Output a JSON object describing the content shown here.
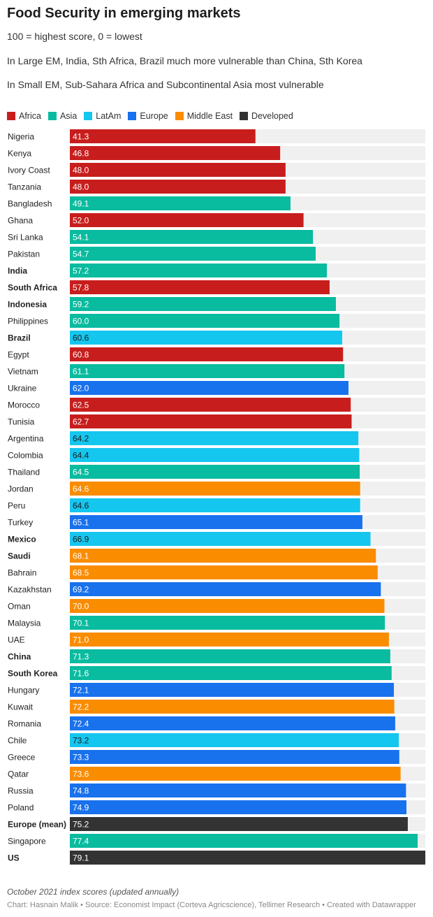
{
  "title": "Food Security in emerging markets",
  "subtitles": [
    "100 = highest score, 0 = lowest",
    "In Large EM, India, Sth Africa, Brazil much more vulnerable than China, Sth Korea",
    "In Small EM, Sub-Sahara Africa and Subcontinental Asia most vulnerable"
  ],
  "legend": [
    {
      "name": "Africa",
      "color": "#c71e1d"
    },
    {
      "name": "Asia",
      "color": "#09bb9f"
    },
    {
      "name": "LatAm",
      "color": "#15c6ef"
    },
    {
      "name": "Europe",
      "color": "#1871ed"
    },
    {
      "name": "Middle East",
      "color": "#fa8c00"
    },
    {
      "name": "Developed",
      "color": "#333333"
    }
  ],
  "footer": {
    "note": "October 2021 index scores (updated annually)",
    "credit": "Chart: Hasnain Malik • Source: Economist Impact (Corteva Agricscience), Tellimer Research • Created with Datawrapper"
  },
  "chart_data": {
    "type": "bar",
    "orientation": "horizontal",
    "xlim": [
      0,
      79.1
    ],
    "background_track": true,
    "rows": [
      {
        "label": "Nigeria",
        "value": 41.3,
        "region": "Africa",
        "bold": false
      },
      {
        "label": "Kenya",
        "value": 46.8,
        "region": "Africa",
        "bold": false
      },
      {
        "label": "Ivory Coast",
        "value": 48.0,
        "region": "Africa",
        "bold": false
      },
      {
        "label": "Tanzania",
        "value": 48.0,
        "region": "Africa",
        "bold": false
      },
      {
        "label": "Bangladesh",
        "value": 49.1,
        "region": "Asia",
        "bold": false
      },
      {
        "label": "Ghana",
        "value": 52.0,
        "region": "Africa",
        "bold": false
      },
      {
        "label": "Sri Lanka",
        "value": 54.1,
        "region": "Asia",
        "bold": false
      },
      {
        "label": "Pakistan",
        "value": 54.7,
        "region": "Asia",
        "bold": false
      },
      {
        "label": "India",
        "value": 57.2,
        "region": "Asia",
        "bold": true
      },
      {
        "label": "South Africa",
        "value": 57.8,
        "region": "Africa",
        "bold": true
      },
      {
        "label": "Indonesia",
        "value": 59.2,
        "region": "Asia",
        "bold": true
      },
      {
        "label": "Philippines",
        "value": 60.0,
        "region": "Asia",
        "bold": false
      },
      {
        "label": "Brazil",
        "value": 60.6,
        "region": "LatAm",
        "bold": true
      },
      {
        "label": "Egypt",
        "value": 60.8,
        "region": "Africa",
        "bold": false
      },
      {
        "label": "Vietnam",
        "value": 61.1,
        "region": "Asia",
        "bold": false
      },
      {
        "label": "Ukraine",
        "value": 62.0,
        "region": "Europe",
        "bold": false
      },
      {
        "label": "Morocco",
        "value": 62.5,
        "region": "Africa",
        "bold": false
      },
      {
        "label": "Tunisia",
        "value": 62.7,
        "region": "Africa",
        "bold": false
      },
      {
        "label": "Argentina",
        "value": 64.2,
        "region": "LatAm",
        "bold": false
      },
      {
        "label": "Colombia",
        "value": 64.4,
        "region": "LatAm",
        "bold": false
      },
      {
        "label": "Thailand",
        "value": 64.5,
        "region": "Asia",
        "bold": false
      },
      {
        "label": "Jordan",
        "value": 64.6,
        "region": "Middle East",
        "bold": false
      },
      {
        "label": "Peru",
        "value": 64.6,
        "region": "LatAm",
        "bold": false
      },
      {
        "label": "Turkey",
        "value": 65.1,
        "region": "Europe",
        "bold": false
      },
      {
        "label": "Mexico",
        "value": 66.9,
        "region": "LatAm",
        "bold": true
      },
      {
        "label": "Saudi",
        "value": 68.1,
        "region": "Middle East",
        "bold": true
      },
      {
        "label": "Bahrain",
        "value": 68.5,
        "region": "Middle East",
        "bold": false
      },
      {
        "label": "Kazakhstan",
        "value": 69.2,
        "region": "Europe",
        "bold": false
      },
      {
        "label": "Oman",
        "value": 70.0,
        "region": "Middle East",
        "bold": false
      },
      {
        "label": "Malaysia",
        "value": 70.1,
        "region": "Asia",
        "bold": false
      },
      {
        "label": "UAE",
        "value": 71.0,
        "region": "Middle East",
        "bold": false
      },
      {
        "label": "China",
        "value": 71.3,
        "region": "Asia",
        "bold": true
      },
      {
        "label": "South Korea",
        "value": 71.6,
        "region": "Asia",
        "bold": true
      },
      {
        "label": "Hungary",
        "value": 72.1,
        "region": "Europe",
        "bold": false
      },
      {
        "label": "Kuwait",
        "value": 72.2,
        "region": "Middle East",
        "bold": false
      },
      {
        "label": "Romania",
        "value": 72.4,
        "region": "Europe",
        "bold": false
      },
      {
        "label": "Chile",
        "value": 73.2,
        "region": "LatAm",
        "bold": false
      },
      {
        "label": "Greece",
        "value": 73.3,
        "region": "Europe",
        "bold": false
      },
      {
        "label": "Qatar",
        "value": 73.6,
        "region": "Middle East",
        "bold": false
      },
      {
        "label": "Russia",
        "value": 74.8,
        "region": "Europe",
        "bold": false
      },
      {
        "label": "Poland",
        "value": 74.9,
        "region": "Europe",
        "bold": false
      },
      {
        "label": "Europe (mean)",
        "value": 75.2,
        "region": "Developed",
        "bold": true
      },
      {
        "label": "Singapore",
        "value": 77.4,
        "region": "Asia",
        "bold": false
      },
      {
        "label": "US",
        "value": 79.1,
        "region": "Developed",
        "bold": true
      }
    ]
  }
}
